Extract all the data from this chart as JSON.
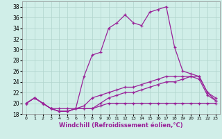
{
  "xlabel": "Windchill (Refroidissement éolien,°C)",
  "x_labels": [
    "0",
    "1",
    "2",
    "3",
    "4",
    "5",
    "6",
    "7",
    "8",
    "9",
    "10",
    "11",
    "12",
    "13",
    "14",
    "15",
    "16",
    "17",
    "18",
    "19",
    "20",
    "21",
    "22",
    "23"
  ],
  "ylim": [
    18,
    39
  ],
  "yticks": [
    18,
    20,
    22,
    24,
    26,
    28,
    30,
    32,
    34,
    36,
    38
  ],
  "background_color": "#d0eee8",
  "grid_color": "#b0d4cc",
  "line_color": "#992299",
  "line1_y": [
    20.0,
    21.0,
    20.0,
    19.0,
    19.0,
    19.0,
    19.0,
    19.0,
    19.0,
    19.5,
    20.0,
    20.0,
    20.0,
    20.0,
    20.0,
    20.0,
    20.0,
    20.0,
    20.0,
    20.0,
    20.0,
    20.0,
    20.0,
    20.0
  ],
  "line2_y": [
    20.0,
    21.0,
    20.0,
    19.0,
    18.5,
    18.5,
    19.0,
    19.0,
    19.0,
    20.0,
    21.0,
    21.5,
    22.0,
    22.0,
    22.5,
    23.0,
    23.5,
    24.0,
    24.0,
    24.5,
    25.0,
    24.5,
    21.5,
    20.5
  ],
  "line3_y": [
    20.0,
    21.0,
    20.0,
    19.0,
    18.5,
    18.5,
    19.0,
    19.5,
    21.0,
    21.5,
    22.0,
    22.5,
    23.0,
    23.0,
    23.5,
    24.0,
    24.5,
    25.0,
    25.0,
    25.0,
    25.0,
    25.0,
    22.0,
    21.0
  ],
  "line4_y": [
    20.0,
    21.0,
    20.0,
    19.0,
    18.5,
    18.5,
    19.0,
    25.0,
    29.0,
    29.5,
    34.0,
    35.0,
    36.5,
    35.0,
    34.5,
    37.0,
    37.5,
    38.0,
    30.5,
    26.0,
    25.5,
    25.0,
    22.0,
    20.5
  ]
}
